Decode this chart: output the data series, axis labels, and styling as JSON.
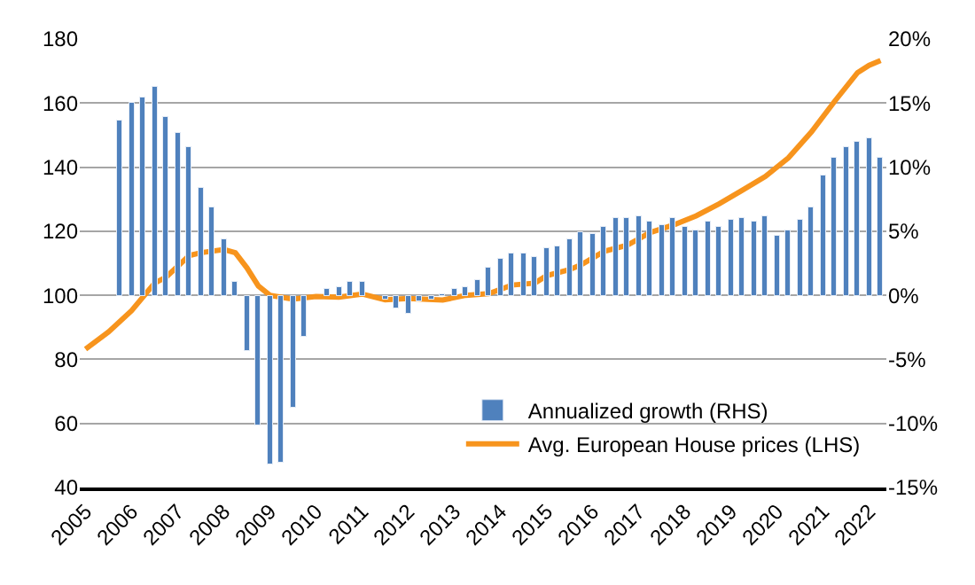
{
  "chart_data": {
    "type": "bar",
    "series": [
      {
        "name": "Annualized growth (RHS)",
        "color": "#4f81bd",
        "axis": "y2",
        "x": [
          2005.75,
          2006,
          2006.25,
          2006.5,
          2006.75,
          2007,
          2007.25,
          2007.5,
          2007.75,
          2008,
          2008.25,
          2008.5,
          2008.75,
          2009,
          2009.25,
          2009.5,
          2009.75,
          2010,
          2010.25,
          2010.5,
          2010.75,
          2011,
          2011.25,
          2011.5,
          2011.75,
          2012,
          2012.25,
          2012.5,
          2012.75,
          2013,
          2013.25,
          2013.5,
          2013.75,
          2014,
          2014.25,
          2014.5,
          2014.75,
          2015,
          2015.25,
          2015.5,
          2015.75,
          2016,
          2016.25,
          2016.5,
          2016.75,
          2017,
          2017.25,
          2017.5,
          2017.75,
          2018,
          2018.25,
          2018.5,
          2018.75,
          2019,
          2019.25,
          2019.5,
          2019.75,
          2020,
          2020.25,
          2020.5,
          2020.75,
          2021,
          2021.25,
          2021.5,
          2021.75,
          2022,
          2022.25
        ],
        "values": [
          13.7,
          15.0,
          15.4,
          16.3,
          13.9,
          12.7,
          11.5,
          8.4,
          6.9,
          4.3,
          1.0,
          -4.4,
          -10.2,
          -13.2,
          -13.0,
          -8.8,
          -3.2,
          null,
          0.5,
          0.7,
          1.0,
          1.0,
          null,
          -0.3,
          -1.0,
          -1.5,
          -0.5,
          -0.3,
          0.1,
          0.5,
          0.6,
          1.2,
          2.1,
          2.8,
          3.3,
          3.2,
          3.0,
          3.7,
          3.8,
          4.3,
          4.9,
          4.8,
          5.4,
          6.0,
          6.0,
          6.2,
          5.7,
          5.5,
          6.0,
          5.4,
          5.1,
          5.7,
          5.4,
          5.9,
          6.0,
          5.7,
          6.2,
          4.7,
          5.0,
          5.9,
          6.9,
          9.3,
          10.7,
          11.5,
          12.0,
          12.3,
          10.7
        ]
      },
      {
        "type": "line",
        "name": "Avg. European House prices (LHS)",
        "color": "#f7941d",
        "axis": "y",
        "x": [
          2005,
          2005.5,
          2006,
          2006.5,
          2006.75,
          2007.25,
          2007.5,
          2008,
          2008.25,
          2008.5,
          2008.75,
          2009,
          2009.5,
          2010,
          2010.5,
          2011,
          2011.5,
          2012,
          2012.75,
          2013.25,
          2013.75,
          2014.25,
          2014.75,
          2015,
          2015.5,
          2015.75,
          2016.25,
          2016.75,
          2017.25,
          2017.75,
          2018.25,
          2018.75,
          2019.25,
          2019.75,
          2020.25,
          2020.75,
          2021.25,
          2021.75,
          2022,
          2022.25
        ],
        "values": [
          83.2,
          88.6,
          95.2,
          103.8,
          105.7,
          112.4,
          113.3,
          114.3,
          113.3,
          108.6,
          102.9,
          100,
          98.8,
          99.6,
          99.4,
          100.4,
          98.6,
          99,
          98.5,
          100,
          100.5,
          103.2,
          103.8,
          106.1,
          108,
          109.5,
          113.7,
          115.6,
          119.6,
          121.9,
          124.8,
          128.6,
          132.8,
          137.1,
          142.9,
          151,
          160.5,
          169.5,
          171.8,
          173.3
        ]
      }
    ],
    "xlim": [
      2004.875,
      2022.375
    ],
    "xticks": [
      2005,
      2006,
      2007,
      2008,
      2009,
      2010,
      2011,
      2012,
      2013,
      2014,
      2015,
      2016,
      2017,
      2018,
      2019,
      2020,
      2021,
      2022
    ],
    "ylim": [
      40,
      180
    ],
    "yticks": [
      40,
      60,
      80,
      100,
      120,
      140,
      160,
      180
    ],
    "y2lim": [
      -15,
      20
    ],
    "y2ticks": [
      {
        "value": -15,
        "label": "-15%"
      },
      {
        "value": -10,
        "label": "-10%"
      },
      {
        "value": -5,
        "label": "-5%"
      },
      {
        "value": 0,
        "label": "0%"
      },
      {
        "value": 5,
        "label": "5%"
      },
      {
        "value": 10,
        "label": "10%"
      },
      {
        "value": 15,
        "label": "15%"
      },
      {
        "value": 20,
        "label": "20%"
      }
    ],
    "grid": "y",
    "legend": "bottom right"
  }
}
